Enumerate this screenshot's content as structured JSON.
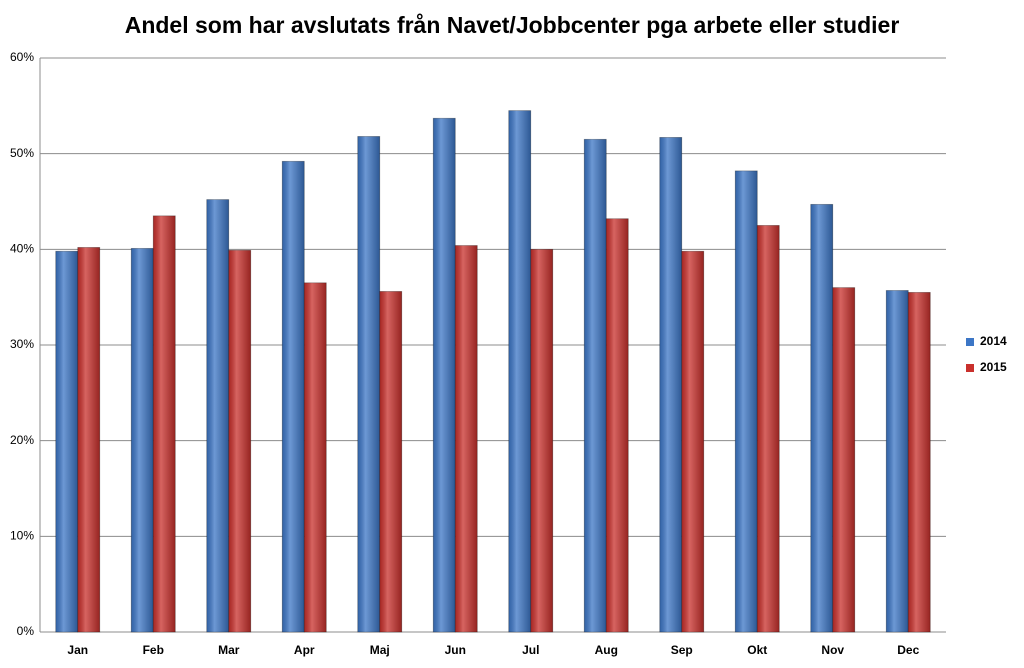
{
  "chart_data": {
    "type": "bar",
    "title": "Andel som har avslutats från Navet/Jobbcenter pga arbete eller studier",
    "categories": [
      "Jan",
      "Feb",
      "Mar",
      "Apr",
      "Maj",
      "Jun",
      "Jul",
      "Aug",
      "Sep",
      "Okt",
      "Nov",
      "Dec"
    ],
    "series": [
      {
        "name": "2014",
        "color": "#3c76c6",
        "values": [
          39.8,
          40.1,
          45.2,
          49.2,
          51.8,
          53.7,
          54.5,
          51.5,
          51.7,
          48.2,
          44.7,
          35.7
        ]
      },
      {
        "name": "2015",
        "color": "#c9302c",
        "values": [
          40.2,
          43.5,
          39.9,
          36.5,
          35.6,
          40.4,
          40.0,
          43.2,
          39.8,
          42.5,
          36.0,
          35.5
        ]
      }
    ],
    "ylim": [
      0,
      60
    ],
    "yticks": [
      {
        "value": 0,
        "label": "0%"
      },
      {
        "value": 10,
        "label": "10%"
      },
      {
        "value": 20,
        "label": "20%"
      },
      {
        "value": 30,
        "label": "30%"
      },
      {
        "value": 40,
        "label": "40%"
      },
      {
        "value": 50,
        "label": "50%"
      },
      {
        "value": 60,
        "label": "60%"
      }
    ],
    "grid": true,
    "legend": "right"
  }
}
